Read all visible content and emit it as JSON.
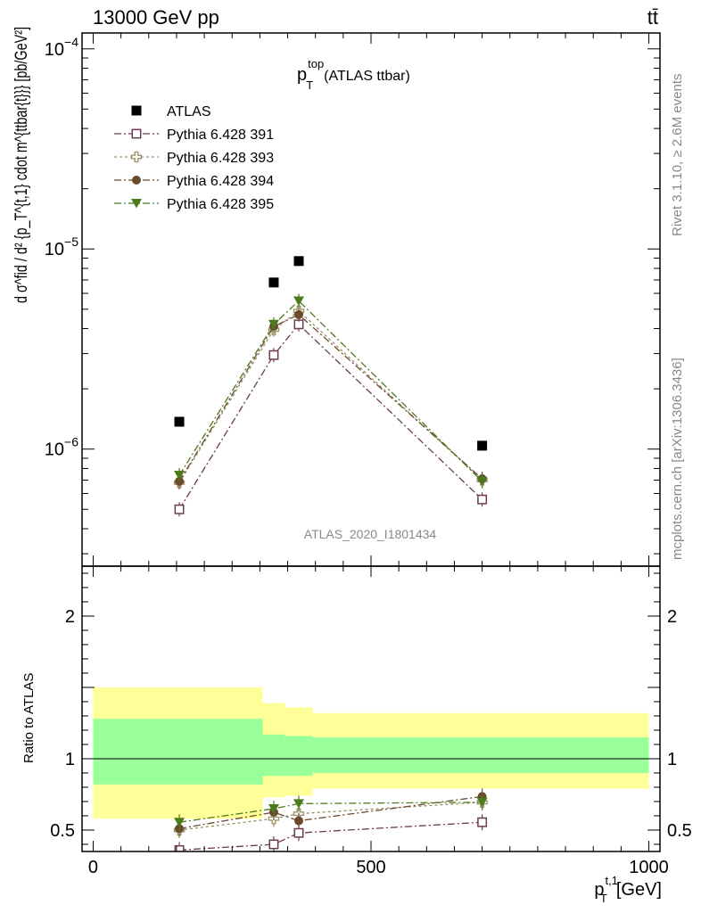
{
  "header": {
    "energy_label": "13000 GeV pp",
    "process_label": "tt̄"
  },
  "side_labels": {
    "rivet": "Rivet 3.1.10, ≥ 2.6M events",
    "mcplots": "mcplots.cern.ch [arXiv:1306.3436]"
  },
  "chart_data": [
    {
      "type": "scatter",
      "panel": "main",
      "title_main": "p",
      "title_sup": "top",
      "title_sub": "T",
      "title_suffix": "(ATLAS ttbar)",
      "ylabel": "d σ^fid / d² {p_T^{t,1} cdot m^{ttbar{t}}} [pb/GeV²]",
      "yscale": "log",
      "ylim": [
        2.6e-07,
        0.00012
      ],
      "xlim": [
        -20,
        1020
      ],
      "ytick_labels": [
        {
          "value": 1e-06,
          "base": "10",
          "exp": "−6"
        },
        {
          "value": 1e-05,
          "base": "10",
          "exp": "−5"
        },
        {
          "value": 0.0001,
          "base": "10",
          "exp": "−4"
        }
      ],
      "watermark": "ATLAS_2020_I1801434",
      "legend_position": "top-left",
      "series": [
        {
          "name": "ATLAS",
          "color": "#000000",
          "marker": "filled-square",
          "line": "none",
          "x": [
            155,
            325,
            370,
            700
          ],
          "y": [
            1.37e-06,
            6.8e-06,
            8.7e-06,
            1.04e-06
          ]
        },
        {
          "name": "Pythia 6.428 391",
          "color": "#6b3b55",
          "marker": "open-square",
          "line": "dashdot",
          "x": [
            155,
            325,
            370,
            700
          ],
          "y": [
            5e-07,
            2.95e-06,
            4.2e-06,
            5.6e-07
          ]
        },
        {
          "name": "Pythia 6.428 393",
          "color": "#9a8f60",
          "marker": "open-cross",
          "line": "dotted",
          "x": [
            155,
            325,
            370,
            700
          ],
          "y": [
            6.8e-07,
            3.95e-06,
            4.9e-06,
            7e-07
          ]
        },
        {
          "name": "Pythia 6.428 394",
          "color": "#6b4a2e",
          "marker": "filled-circle",
          "line": "dashdot",
          "x": [
            155,
            325,
            370,
            700
          ],
          "y": [
            6.9e-07,
            4.1e-06,
            4.7e-06,
            7.1e-07
          ]
        },
        {
          "name": "Pythia 6.428 395",
          "color": "#4e7a1e",
          "marker": "filled-triangle-down",
          "line": "dashdot",
          "x": [
            155,
            325,
            370,
            700
          ],
          "y": [
            7.4e-07,
            4.2e-06,
            5.5e-06,
            6.9e-07
          ]
        }
      ]
    },
    {
      "type": "scatter",
      "panel": "ratio",
      "ylabel": "Ratio to ATLAS",
      "xlabel_main": "p",
      "xlabel_sup": "t,1",
      "xlabel_sub": "T",
      "xlabel_unit": "[GeV]",
      "ylim": [
        0.35,
        2.35
      ],
      "xlim": [
        -20,
        1020
      ],
      "xtick_labels": [
        {
          "value": 0,
          "label": "0"
        },
        {
          "value": 500,
          "label": "500"
        },
        {
          "value": 1000,
          "label": "1000"
        }
      ],
      "ytick_labels": [
        {
          "value": 0.5,
          "label": "0.5"
        },
        {
          "value": 1,
          "label": "1"
        },
        {
          "value": 2,
          "label": "2"
        }
      ],
      "bands": [
        {
          "x0": 0,
          "x1": 305,
          "green": [
            0.82,
            1.28
          ],
          "yellow": [
            0.58,
            1.5
          ]
        },
        {
          "x0": 305,
          "x1": 345,
          "green": [
            0.88,
            1.17
          ],
          "yellow": [
            0.73,
            1.39
          ]
        },
        {
          "x0": 345,
          "x1": 395,
          "green": [
            0.88,
            1.16
          ],
          "yellow": [
            0.74,
            1.36
          ]
        },
        {
          "x0": 395,
          "x1": 1000,
          "green": [
            0.9,
            1.15
          ],
          "yellow": [
            0.79,
            1.32
          ]
        }
      ],
      "series": [
        {
          "name": "Pythia 6.428 391",
          "color": "#6b3b55",
          "marker": "open-square",
          "line": "dashdot",
          "x": [
            155,
            325,
            370,
            700
          ],
          "y": [
            0.36,
            0.4,
            0.48,
            0.555
          ]
        },
        {
          "name": "Pythia 6.428 393",
          "color": "#9a8f60",
          "marker": "open-cross",
          "line": "dotted",
          "x": [
            155,
            325,
            370,
            700
          ],
          "y": [
            0.5,
            0.58,
            0.615,
            0.695
          ]
        },
        {
          "name": "Pythia 6.428 394",
          "color": "#6b4a2e",
          "marker": "filled-circle",
          "line": "dashdot",
          "x": [
            155,
            325,
            370,
            700
          ],
          "y": [
            0.51,
            0.625,
            0.565,
            0.735
          ]
        },
        {
          "name": "Pythia 6.428 395",
          "color": "#4e7a1e",
          "marker": "filled-triangle-down",
          "line": "dashdot",
          "x": [
            155,
            325,
            370,
            700
          ],
          "y": [
            0.555,
            0.65,
            0.685,
            0.695
          ]
        }
      ]
    }
  ]
}
